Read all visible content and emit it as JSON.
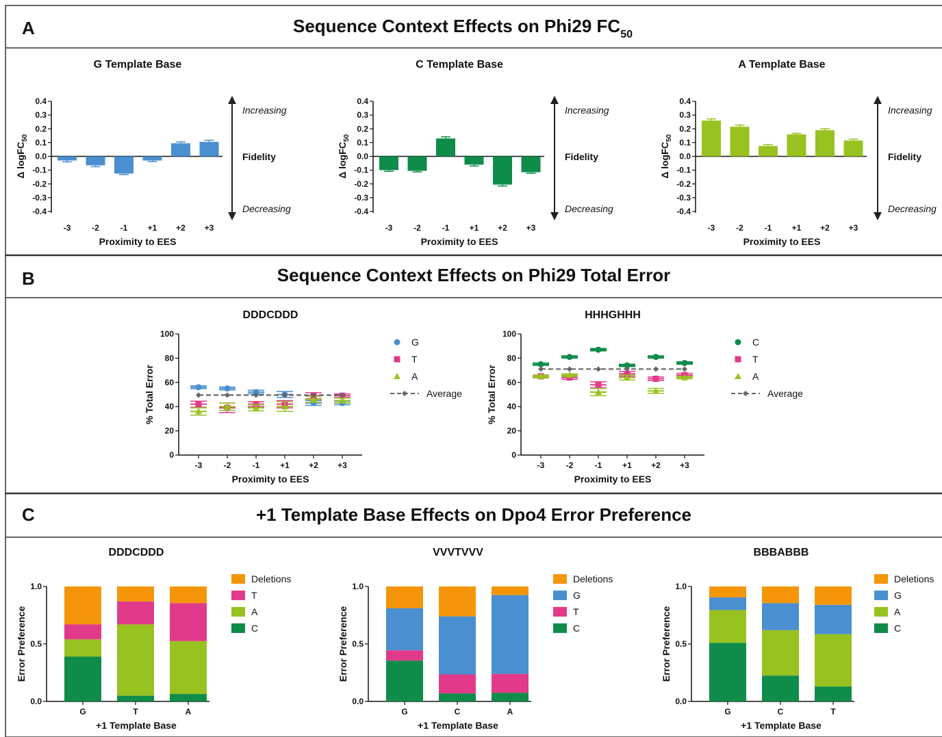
{
  "panels": [
    {
      "letter": "A",
      "title": "Sequence Context Effects on Phi29 FC",
      "title_sub": "50"
    },
    {
      "letter": "B",
      "title": "Sequence Context Effects on Phi29 Total Error"
    },
    {
      "letter": "C",
      "title": "+1 Template Base Effects on Dpo4 Error Preference"
    }
  ],
  "arrow_labels": {
    "top": "Increasing",
    "middle": "Fidelity",
    "bottom": "Decreasing"
  },
  "chart_data": [
    {
      "type": "bar",
      "panel": "A",
      "title": "G Template Base",
      "categories": [
        "-3",
        "-2",
        "-1",
        "+1",
        "+2",
        "+3"
      ],
      "values": [
        -0.03,
        -0.065,
        -0.125,
        -0.03,
        0.095,
        0.105
      ],
      "errors": [
        0.01,
        0.01,
        0.008,
        0.008,
        0.01,
        0.012
      ],
      "xlabel": "Proximity to EES",
      "ylabel": "Δ logFC",
      "ylabel_sub": "50",
      "ylim": [
        -0.4,
        0.4
      ],
      "yticks": [
        "0.4",
        "0.3",
        "0.2",
        "0.1",
        "0.0",
        "-0.1",
        "-0.2",
        "-0.3",
        "-0.4"
      ],
      "color": "#4a8fcf"
    },
    {
      "type": "bar",
      "panel": "A",
      "title": "C Template Base",
      "categories": [
        "-3",
        "-2",
        "-1",
        "+1",
        "+2",
        "+3"
      ],
      "values": [
        -0.1,
        -0.105,
        0.13,
        -0.06,
        -0.205,
        -0.115
      ],
      "errors": [
        0.008,
        0.008,
        0.012,
        0.01,
        0.01,
        0.008
      ],
      "xlabel": "Proximity to EES",
      "ylabel": "Δ logFC",
      "ylabel_sub": "50",
      "ylim": [
        -0.4,
        0.4
      ],
      "yticks": [
        "0.4",
        "0.3",
        "0.2",
        "0.1",
        "0.0",
        "-0.1",
        "-0.2",
        "-0.3",
        "-0.4"
      ],
      "color": "#0f8c4a"
    },
    {
      "type": "bar",
      "panel": "A",
      "title": "A Template Base",
      "categories": [
        "-3",
        "-2",
        "-1",
        "+1",
        "+2",
        "+3"
      ],
      "values": [
        0.26,
        0.215,
        0.075,
        0.16,
        0.19,
        0.115
      ],
      "errors": [
        0.012,
        0.012,
        0.01,
        0.008,
        0.01,
        0.01
      ],
      "xlabel": "Proximity to EES",
      "ylabel": "Δ logFC",
      "ylabel_sub": "50",
      "ylim": [
        -0.4,
        0.4
      ],
      "yticks": [
        "0.4",
        "0.3",
        "0.2",
        "0.1",
        "0.0",
        "-0.1",
        "-0.2",
        "-0.3",
        "-0.4"
      ],
      "color": "#98c21f"
    },
    {
      "type": "scatter",
      "panel": "B",
      "title": "DDDCDDD",
      "categories": [
        "-3",
        "-2",
        "-1",
        "+1",
        "+2",
        "+3"
      ],
      "xlabel": "Proximity to EES",
      "ylabel": "% Total Error",
      "ylim": [
        0,
        100
      ],
      "yticks": [
        "100",
        "80",
        "60",
        "40",
        "20",
        "0"
      ],
      "series": [
        {
          "name": "G",
          "marker": "circle",
          "color": "#4a8fcf",
          "values": [
            56,
            55,
            52,
            50,
            43,
            43
          ],
          "errors": [
            1.2,
            1.2,
            1.5,
            2.5,
            2,
            1.5
          ]
        },
        {
          "name": "T",
          "marker": "square",
          "color": "#e23a8a",
          "values": [
            42,
            39,
            42,
            42,
            49,
            49
          ],
          "errors": [
            2.5,
            4,
            2,
            3,
            2.5,
            1.5
          ]
        },
        {
          "name": "A",
          "marker": "triangle",
          "color": "#98c21f",
          "values": [
            36,
            40,
            39,
            40,
            46,
            45
          ],
          "errors": [
            3,
            3,
            2.5,
            4,
            2.5,
            2
          ]
        },
        {
          "name": "Average",
          "marker": "diamond",
          "color": "#666666",
          "dashed": true,
          "values": [
            49.5,
            49.5,
            49.5,
            49.5,
            49.5,
            49.5
          ]
        }
      ]
    },
    {
      "type": "scatter",
      "panel": "B",
      "title": "HHHGHHH",
      "categories": [
        "-3",
        "-2",
        "-1",
        "+1",
        "+2",
        "+3"
      ],
      "xlabel": "Proximity to EES",
      "ylabel": "% Total Error",
      "ylim": [
        0,
        100
      ],
      "yticks": [
        "100",
        "80",
        "60",
        "40",
        "20",
        "0"
      ],
      "series": [
        {
          "name": "C",
          "marker": "circle",
          "color": "#0f8c4a",
          "values": [
            75,
            81,
            87,
            74,
            81,
            76
          ],
          "errors": [
            1,
            1,
            1,
            1,
            1,
            1
          ]
        },
        {
          "name": "T",
          "marker": "square",
          "color": "#e23a8a",
          "values": [
            65,
            64,
            58,
            67,
            63,
            66
          ],
          "errors": [
            1.2,
            1.5,
            2.5,
            2,
            1.5,
            1.5
          ]
        },
        {
          "name": "A",
          "marker": "triangle",
          "color": "#98c21f",
          "values": [
            65,
            66,
            52,
            64,
            53,
            64
          ],
          "errors": [
            1,
            1,
            3,
            2,
            2,
            1
          ]
        },
        {
          "name": "Average",
          "marker": "diamond",
          "color": "#666666",
          "dashed": true,
          "values": [
            71,
            71,
            71,
            71,
            71,
            71
          ]
        }
      ]
    },
    {
      "type": "bar",
      "stacked": true,
      "panel": "C",
      "title": "DDDCDDD",
      "categories": [
        "G",
        "T",
        "A"
      ],
      "xlabel": "+1 Template Base",
      "ylabel": "Error Preference",
      "ylim": [
        0,
        1
      ],
      "yticks": [
        "1.0",
        "0.5",
        "0.0"
      ],
      "series": [
        {
          "name": "C",
          "color": "#0f8c4a",
          "values": [
            0.39,
            0.05,
            0.065
          ]
        },
        {
          "name": "A",
          "color": "#98c21f",
          "values": [
            0.15,
            0.62,
            0.46
          ]
        },
        {
          "name": "T",
          "color": "#e23a8a",
          "values": [
            0.13,
            0.2,
            0.33
          ]
        },
        {
          "name": "Deletions",
          "color": "#f5960a",
          "values": [
            0.33,
            0.13,
            0.145
          ]
        }
      ]
    },
    {
      "type": "bar",
      "stacked": true,
      "panel": "C",
      "title": "VVVTVVV",
      "categories": [
        "G",
        "C",
        "A"
      ],
      "xlabel": "+1 Template Base",
      "ylabel": "Error Preference",
      "ylim": [
        0,
        1
      ],
      "yticks": [
        "1.0",
        "0.5",
        "0.0"
      ],
      "series": [
        {
          "name": "C",
          "color": "#0f8c4a",
          "values": [
            0.355,
            0.07,
            0.075
          ]
        },
        {
          "name": "T",
          "color": "#e23a8a",
          "values": [
            0.09,
            0.165,
            0.165
          ]
        },
        {
          "name": "G",
          "color": "#4a8fcf",
          "values": [
            0.365,
            0.505,
            0.685
          ]
        },
        {
          "name": "Deletions",
          "color": "#f5960a",
          "values": [
            0.19,
            0.26,
            0.075
          ]
        }
      ]
    },
    {
      "type": "bar",
      "stacked": true,
      "panel": "C",
      "title": "BBBABBB",
      "categories": [
        "G",
        "C",
        "T"
      ],
      "xlabel": "+1 Template Base",
      "ylabel": "Error Preference",
      "ylim": [
        0,
        1
      ],
      "yticks": [
        "1.0",
        "0.5",
        "0.0"
      ],
      "series": [
        {
          "name": "C",
          "color": "#0f8c4a",
          "values": [
            0.51,
            0.225,
            0.13
          ]
        },
        {
          "name": "A",
          "color": "#98c21f",
          "values": [
            0.285,
            0.395,
            0.455
          ]
        },
        {
          "name": "G",
          "color": "#4a8fcf",
          "values": [
            0.11,
            0.235,
            0.255
          ]
        },
        {
          "name": "Deletions",
          "color": "#f5960a",
          "values": [
            0.095,
            0.145,
            0.16
          ]
        }
      ]
    }
  ]
}
